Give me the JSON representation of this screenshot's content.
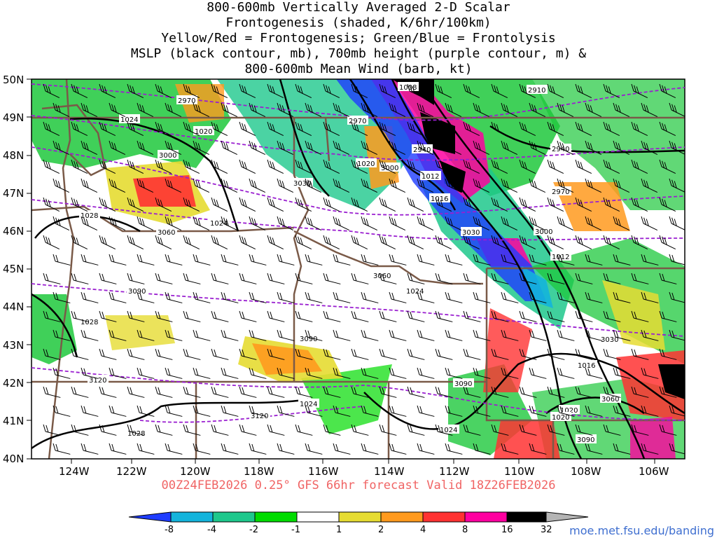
{
  "title": {
    "line1": "800-600mb Vertically Averaged 2-D Scalar",
    "line2": "Frontogenesis (shaded, K/6hr/100km)",
    "line3": "Yellow/Red = Frontogenesis;  Green/Blue = Frontolysis",
    "line4": "MSLP (black contour, mb), 700mb height (purple contour, m) &",
    "line5": "800-600mb Mean Wind (barb, kt)"
  },
  "valid_text": "00Z24FEB2026 0.25° GFS 66hr forecast Valid 18Z26FEB2026",
  "credit": "moe.met.fsu.edu/banding",
  "lat_labels": [
    "50N",
    "49N",
    "48N",
    "47N",
    "46N",
    "45N",
    "44N",
    "43N",
    "42N",
    "41N",
    "40N"
  ],
  "lon_labels": [
    "124W",
    "122W",
    "120W",
    "118W",
    "116W",
    "114W",
    "112W",
    "110W",
    "108W",
    "106W"
  ],
  "colorbar": {
    "labels": [
      "-8",
      "-4",
      "-2",
      "-1",
      "1",
      "2",
      "4",
      "8",
      "16",
      "32"
    ],
    "colors": [
      "#1e3cff",
      "#14b4dc",
      "#1ec88c",
      "#1ec83c",
      "#00dc00",
      "#ffffff",
      "#e6dc32",
      "#ff9a1e",
      "#ff3232",
      "#ff00a0",
      "#000000",
      "#b4b4b4"
    ]
  },
  "mslp_labels": [
    "1008",
    "1012",
    "1016",
    "1020",
    "1020",
    "1024",
    "1024",
    "1024",
    "1024",
    "1028",
    "1028",
    "1028",
    "1012",
    "1016",
    "1020",
    "1020",
    "1024"
  ],
  "height_labels": [
    "2910",
    "2940",
    "2940",
    "2970",
    "2970",
    "2970",
    "3000",
    "3000",
    "3000",
    "3030",
    "3030",
    "3030",
    "3060",
    "3060",
    "3060",
    "3090",
    "3090",
    "3090",
    "3090",
    "3120",
    "3120"
  ],
  "colors": {
    "mslp": "#000000",
    "height": "#9a1fd0",
    "borders": "#7a5a48",
    "frontogenesis_red": "#ff3232",
    "frontolysis_blue": "#1e3cff"
  }
}
